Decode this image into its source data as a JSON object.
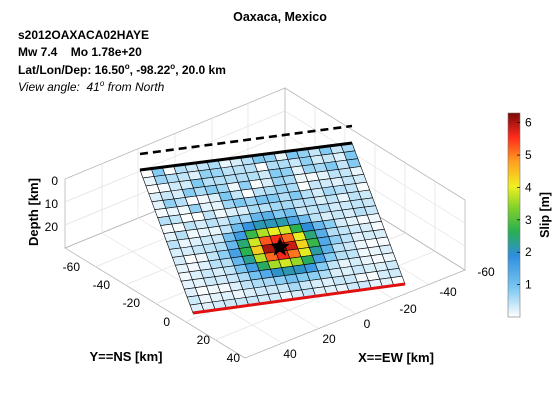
{
  "header": {
    "title": "Oaxaca, Mexico",
    "event_id": "s2012OAXACA02HAYE",
    "magnitude": "Mw 7.4",
    "moment": "Mo 1.78e+20",
    "location_label": "Lat/Lon/Dep:",
    "location_value": "16.50",
    "location_lon": "-98.22",
    "location_depth": "20.0 km",
    "view_label": "View angle:",
    "view_value": "41",
    "view_suffix": "from North",
    "degree_mark": "o"
  },
  "chart_data": {
    "type": "heatmap",
    "title": "Oaxaca, Mexico",
    "grid_on": true,
    "axes": {
      "x": {
        "label": "X==EW [km]",
        "ticks": [
          "-60",
          "-40",
          "-20",
          "0",
          "20",
          "40"
        ]
      },
      "y": {
        "label": "Y==NS [km]",
        "ticks": [
          "-60",
          "-40",
          "-20",
          "0",
          "20",
          "40"
        ]
      },
      "z": {
        "label": "Depth [km]",
        "ticks": [
          "0",
          "10",
          "20"
        ]
      }
    },
    "colorbar": {
      "label": "Slip [m]",
      "range": [
        0,
        6.3
      ],
      "ticks": [
        "1",
        "2",
        "3",
        "4",
        "5",
        "6"
      ],
      "placement": "right"
    },
    "grid": {
      "cols": 19,
      "rows": 18
    },
    "patch_size_km": [
      4,
      3
    ],
    "slip_peak": {
      "value": 6.3,
      "col": 9,
      "row": 11
    },
    "hypocenter": {
      "col": 9,
      "row": 11
    },
    "fault_edges": {
      "top": "black",
      "bottom": "red",
      "surface_projection": "dashed"
    }
  }
}
